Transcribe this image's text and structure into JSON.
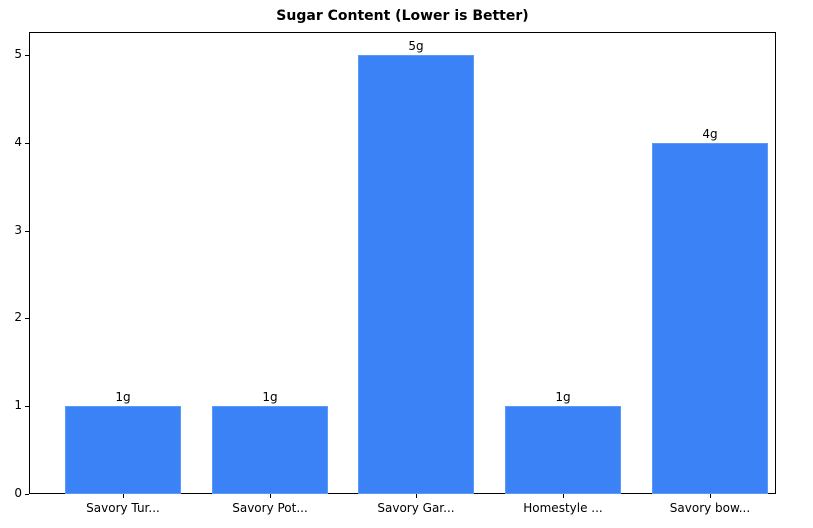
{
  "chart_data": {
    "type": "bar",
    "title": "Sugar Content (Lower is Better)",
    "xlabel": "",
    "ylabel": "",
    "categories": [
      "Savory Tur...",
      "Savory Pot...",
      "Savory Gar...",
      "Homestyle ...",
      "Savory bow..."
    ],
    "values": [
      1,
      1,
      5,
      1,
      4
    ],
    "data_labels": [
      "1g",
      "1g",
      "5g",
      "1g",
      "4g"
    ],
    "yticks": [
      "0",
      "1",
      "2",
      "3",
      "4",
      "5"
    ],
    "ylim": [
      0,
      5.25
    ],
    "grid": false,
    "legend": null,
    "bar_color": "#3b82f6"
  }
}
